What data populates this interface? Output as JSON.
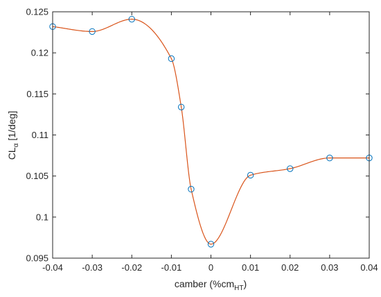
{
  "chart_data": {
    "type": "line",
    "title": "",
    "xlabel": {
      "main": "camber (%cm",
      "sub": "HT",
      "close": ")"
    },
    "ylabel": {
      "main": "CL",
      "sub": "α",
      "rest": " [1/deg]"
    },
    "xlim": [
      -0.04,
      0.04
    ],
    "ylim": [
      0.095,
      0.125
    ],
    "xticks": [
      -0.04,
      -0.03,
      -0.02,
      -0.01,
      0,
      0.01,
      0.02,
      0.03,
      0.04
    ],
    "xtick_labels": [
      "-0.04",
      "-0.03",
      "-0.02",
      "-0.01",
      "0",
      "0.01",
      "0.02",
      "0.03",
      "0.04"
    ],
    "yticks": [
      0.095,
      0.1,
      0.105,
      0.11,
      0.115,
      0.12,
      0.125
    ],
    "ytick_labels": [
      "0.095",
      "0.1",
      "0.105",
      "0.11",
      "0.115",
      "0.12",
      "0.125"
    ],
    "grid": false,
    "series": [
      {
        "style": "markers",
        "marker": "circle",
        "color": "#0072bd",
        "x": [
          -0.04,
          -0.03,
          -0.02,
          -0.01,
          -0.0075,
          -0.005,
          0,
          0.01,
          0.02,
          0.03,
          0.04
        ],
        "y": [
          0.1232,
          0.1226,
          0.1241,
          0.1193,
          0.1134,
          0.1034,
          0.0967,
          0.1051,
          0.1059,
          0.1072,
          0.1072
        ]
      },
      {
        "style": "smooth-line",
        "color": "#d95319",
        "x": [
          -0.04,
          -0.03,
          -0.02,
          -0.01,
          -0.0075,
          -0.005,
          0,
          0.01,
          0.02,
          0.03,
          0.04
        ],
        "y": [
          0.1232,
          0.1226,
          0.1241,
          0.1193,
          0.1134,
          0.1034,
          0.0967,
          0.1051,
          0.1059,
          0.1072,
          0.1072
        ]
      }
    ]
  }
}
